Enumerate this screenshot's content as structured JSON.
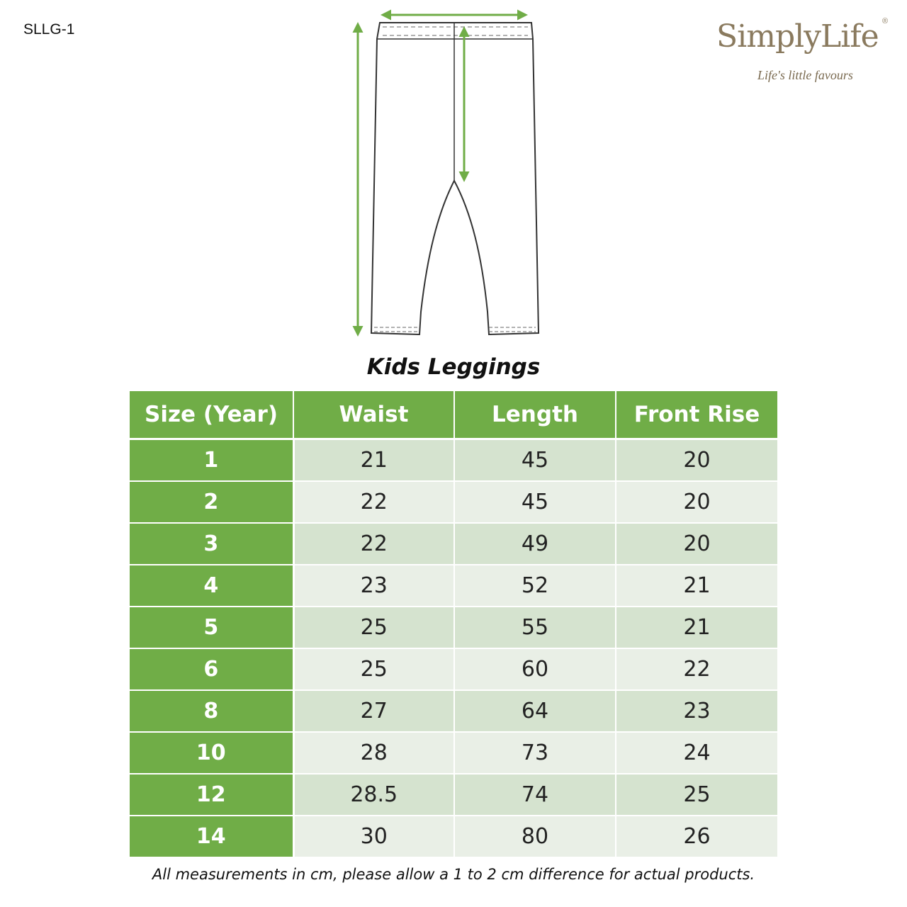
{
  "product_code": "SLLG-1",
  "logo": {
    "brand_name": "SimplyLife",
    "registered_mark": "®",
    "tagline": "Life's little favours"
  },
  "diagram": {
    "garment": "leggings",
    "arrow_color": "#70ad47",
    "outline_color": "#333333"
  },
  "title": "Kids Leggings",
  "table": {
    "header_color": "#70ad47",
    "row_color_odd": "#d5e3cf",
    "row_color_even": "#e9efe6",
    "columns": [
      "Size (Year)",
      "Waist",
      "Length",
      "Front Rise"
    ],
    "rows": [
      [
        "1",
        "21",
        "45",
        "20"
      ],
      [
        "2",
        "22",
        "45",
        "20"
      ],
      [
        "3",
        "22",
        "49",
        "20"
      ],
      [
        "4",
        "23",
        "52",
        "21"
      ],
      [
        "5",
        "25",
        "55",
        "21"
      ],
      [
        "6",
        "25",
        "60",
        "22"
      ],
      [
        "8",
        "27",
        "64",
        "23"
      ],
      [
        "10",
        "28",
        "73",
        "24"
      ],
      [
        "12",
        "28.5",
        "74",
        "25"
      ],
      [
        "14",
        "30",
        "80",
        "26"
      ]
    ]
  },
  "footnote": "All measurements in cm, please allow a 1 to 2 cm difference for actual products."
}
